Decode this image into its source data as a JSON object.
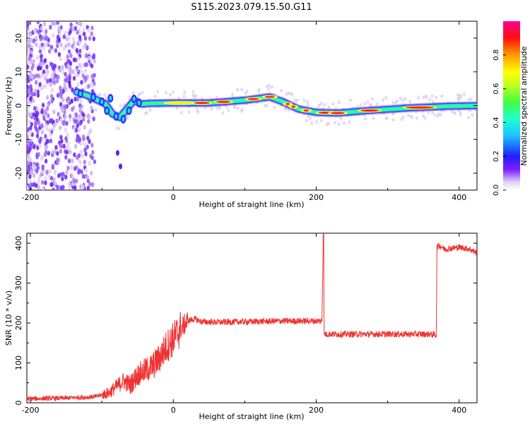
{
  "title": "S115.2023.079.15.50.G11",
  "chart_data": [
    {
      "type": "heatmap",
      "xlabel": "Height of straight line (km)",
      "ylabel": "Frequency (Hz)",
      "xlim": [
        -205,
        425
      ],
      "ylim": [
        -25,
        25
      ],
      "xticks": [
        -200,
        0,
        200,
        400
      ],
      "yticks": [
        -20,
        -10,
        0,
        10,
        20
      ],
      "colorbar": {
        "label": "Normalized spectral amplitude",
        "range": [
          0,
          1
        ],
        "ticks": [
          "0.0",
          "0.2",
          "0.4",
          "0.6",
          "0.8"
        ],
        "tick_values": [
          0,
          0.2,
          0.4,
          0.6,
          0.8
        ]
      },
      "ridge": [
        {
          "x": -135,
          "y": 4.0
        },
        {
          "x": -120,
          "y": 3.0
        },
        {
          "x": -105,
          "y": 1.5
        },
        {
          "x": -95,
          "y": 0.5
        },
        {
          "x": -85,
          "y": -2.5
        },
        {
          "x": -75,
          "y": -3.5
        },
        {
          "x": -65,
          "y": -1.0
        },
        {
          "x": -55,
          "y": 1.5
        },
        {
          "x": -45,
          "y": 0.5
        },
        {
          "x": -30,
          "y": 0.7
        },
        {
          "x": 0,
          "y": 0.8
        },
        {
          "x": 50,
          "y": 0.8
        },
        {
          "x": 100,
          "y": 1.6
        },
        {
          "x": 135,
          "y": 2.6
        },
        {
          "x": 155,
          "y": 1.0
        },
        {
          "x": 175,
          "y": -1.0
        },
        {
          "x": 200,
          "y": -2.0
        },
        {
          "x": 230,
          "y": -2.2
        },
        {
          "x": 270,
          "y": -1.5
        },
        {
          "x": 330,
          "y": -0.7
        },
        {
          "x": 380,
          "y": -0.2
        },
        {
          "x": 425,
          "y": 0.0
        }
      ],
      "stray_points": [
        {
          "x": -78,
          "y": -14
        },
        {
          "x": -74,
          "y": -18
        }
      ],
      "noise_region_x": [
        -205,
        -110
      ]
    },
    {
      "type": "line",
      "xlabel": "Height of straight line (km)",
      "ylabel": "SNR (10 * v/v)",
      "xlim": [
        -205,
        425
      ],
      "ylim": [
        0,
        425
      ],
      "xticks": [
        -200,
        0,
        200,
        400
      ],
      "yticks": [
        0,
        100,
        200,
        300,
        400
      ],
      "color": "#ee3333",
      "series": [
        {
          "x": [
            -205,
            -150,
            -110,
            -90,
            -80,
            -70,
            -60,
            -50,
            -40,
            -30,
            -20,
            -10,
            0,
            10,
            20,
            30,
            40,
            60,
            100,
            150,
            200,
            208,
            210,
            211,
            213,
            250,
            300,
            360,
            368,
            369,
            372,
            380,
            400,
            415,
            425
          ],
          "y": [
            10,
            12,
            15,
            25,
            40,
            55,
            45,
            70,
            80,
            90,
            110,
            140,
            160,
            185,
            205,
            210,
            203,
            202,
            203,
            205,
            205,
            205,
            425,
            172,
            172,
            172,
            172,
            172,
            170,
            390,
            395,
            385,
            390,
            385,
            375
          ]
        }
      ]
    }
  ]
}
